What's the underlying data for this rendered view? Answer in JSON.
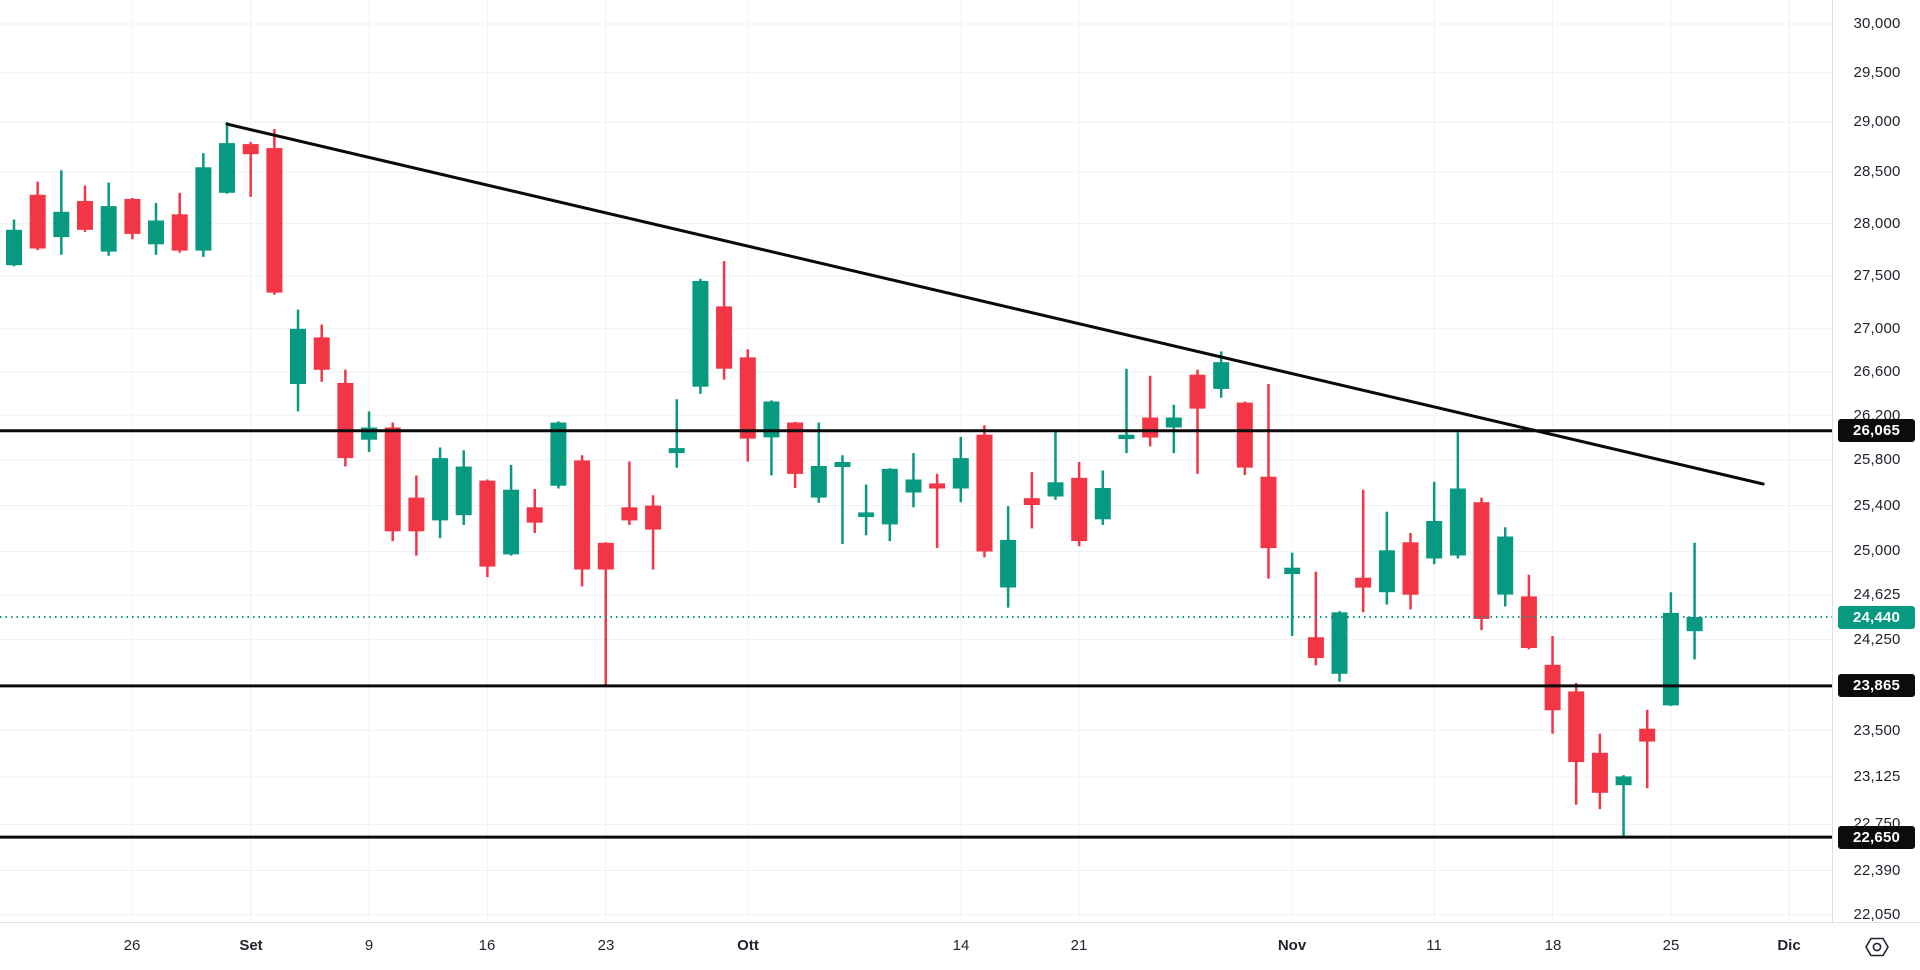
{
  "colors": {
    "background": "#ffffff",
    "grid": "#eff2f6",
    "axis_text": "#20242e",
    "axis_border": "#dcdfe4",
    "candle_up": "#089981",
    "candle_down": "#f23645",
    "level_line": "#0a0a0a",
    "level_badge_bg": "#0c0c0c",
    "level_badge_text": "#ffffff",
    "last_price_color": "#089981",
    "trendline": "#0a0a0a"
  },
  "icons": {
    "time_axis_settings": "gear-icon"
  },
  "chart_data": {
    "type": "candlestick",
    "price_scale": "log",
    "grid": true,
    "axis_position": {
      "price": "right",
      "time": "bottom"
    },
    "visible_price_range": {
      "top": 30250,
      "bottom": 21995
    },
    "y_ticks": [
      {
        "value": 30000,
        "label": "30,000"
      },
      {
        "value": 29500,
        "label": "29,500"
      },
      {
        "value": 29000,
        "label": "29,000"
      },
      {
        "value": 28500,
        "label": "28,500"
      },
      {
        "value": 28000,
        "label": "28,000"
      },
      {
        "value": 27500,
        "label": "27,500"
      },
      {
        "value": 27000,
        "label": "27,000"
      },
      {
        "value": 26600,
        "label": "26,600"
      },
      {
        "value": 26200,
        "label": "26,200"
      },
      {
        "value": 25800,
        "label": "25,800"
      },
      {
        "value": 25400,
        "label": "25,400"
      },
      {
        "value": 25000,
        "label": "25,000"
      },
      {
        "value": 24625,
        "label": "24,625"
      },
      {
        "value": 24250,
        "label": "24,250"
      },
      {
        "value": 23500,
        "label": "23,500"
      },
      {
        "value": 23125,
        "label": "23,125"
      },
      {
        "value": 22750,
        "label": "22,750"
      },
      {
        "value": 22390,
        "label": "22,390"
      },
      {
        "value": 22050,
        "label": "22,050"
      }
    ],
    "x_ticks": [
      {
        "label": "26",
        "bar": 5,
        "month": false
      },
      {
        "label": "Set",
        "bar": 10,
        "month": true
      },
      {
        "label": "9",
        "bar": 15,
        "month": false
      },
      {
        "label": "16",
        "bar": 20,
        "month": false
      },
      {
        "label": "23",
        "bar": 25,
        "month": false
      },
      {
        "label": "Ott",
        "bar": 31,
        "month": true
      },
      {
        "label": "14",
        "bar": 40,
        "month": false
      },
      {
        "label": "21",
        "bar": 45,
        "month": false
      },
      {
        "label": "Nov",
        "bar": 54,
        "month": true
      },
      {
        "label": "11",
        "bar": 60,
        "month": false
      },
      {
        "label": "18",
        "bar": 65,
        "month": false
      },
      {
        "label": "25",
        "bar": 70,
        "month": false
      },
      {
        "label": "Dic",
        "bar": 75,
        "month": true
      }
    ],
    "candles_ohlc": [
      [
        27600,
        28040,
        27590,
        27940
      ],
      [
        28280,
        28410,
        27745,
        27760
      ],
      [
        27870,
        28520,
        27700,
        28115
      ],
      [
        28220,
        28370,
        27920,
        27940
      ],
      [
        27730,
        28400,
        27690,
        28170
      ],
      [
        28240,
        28250,
        27850,
        27900
      ],
      [
        27800,
        28200,
        27700,
        28030
      ],
      [
        28090,
        28300,
        27720,
        27740
      ],
      [
        27740,
        28690,
        27680,
        28550
      ],
      [
        28300,
        29000,
        28290,
        28790
      ],
      [
        28780,
        28800,
        28260,
        28680
      ],
      [
        28740,
        28930,
        27320,
        27340
      ],
      [
        26490,
        27180,
        26240,
        27000
      ],
      [
        26920,
        27040,
        26510,
        26620
      ],
      [
        26500,
        26620,
        25745,
        25820
      ],
      [
        25985,
        26240,
        25875,
        26095
      ],
      [
        26095,
        26140,
        25090,
        25175
      ],
      [
        25470,
        25665,
        24965,
        25175
      ],
      [
        25270,
        25915,
        25115,
        25820
      ],
      [
        25315,
        25890,
        25230,
        25745
      ],
      [
        25620,
        25630,
        24780,
        24870
      ],
      [
        24975,
        25760,
        24965,
        25540
      ],
      [
        25385,
        25545,
        25160,
        25250
      ],
      [
        25575,
        26150,
        25550,
        26140
      ],
      [
        25800,
        25845,
        24700,
        24845
      ],
      [
        25075,
        25080,
        23865,
        24845
      ],
      [
        25385,
        25790,
        25230,
        25270
      ],
      [
        25400,
        25490,
        24845,
        25190
      ],
      [
        25865,
        26350,
        25735,
        25910
      ],
      [
        26465,
        27470,
        26400,
        27450
      ],
      [
        27210,
        27640,
        26530,
        26630
      ],
      [
        26735,
        26810,
        25790,
        25995
      ],
      [
        26005,
        26340,
        25665,
        26330
      ],
      [
        26140,
        26145,
        25555,
        25680
      ],
      [
        25470,
        26140,
        25425,
        25750
      ],
      [
        25740,
        25845,
        25065,
        25785
      ],
      [
        25300,
        25585,
        25140,
        25340
      ],
      [
        25235,
        25730,
        25090,
        25725
      ],
      [
        25515,
        25865,
        25385,
        25630
      ],
      [
        25595,
        25680,
        25030,
        25550
      ],
      [
        25550,
        26010,
        25430,
        25820
      ],
      [
        26030,
        26115,
        24950,
        25000
      ],
      [
        24690,
        25395,
        24520,
        25100
      ],
      [
        25465,
        25695,
        25200,
        25405
      ],
      [
        25480,
        26075,
        25450,
        25605
      ],
      [
        25645,
        25785,
        25045,
        25090
      ],
      [
        25280,
        25710,
        25230,
        25555
      ],
      [
        25990,
        26630,
        25865,
        26030
      ],
      [
        26185,
        26565,
        25925,
        26005
      ],
      [
        26095,
        26300,
        25865,
        26185
      ],
      [
        26575,
        26620,
        25680,
        26265
      ],
      [
        26445,
        26790,
        26365,
        26690
      ],
      [
        26320,
        26330,
        25670,
        25735
      ],
      [
        25655,
        26490,
        24765,
        25030
      ],
      [
        24805,
        24990,
        24280,
        24860
      ],
      [
        24270,
        24825,
        24035,
        24095
      ],
      [
        23965,
        24490,
        23900,
        24480
      ],
      [
        24775,
        25540,
        24480,
        24690
      ],
      [
        24650,
        25345,
        24545,
        25010
      ],
      [
        25080,
        25160,
        24505,
        24630
      ],
      [
        24940,
        25610,
        24890,
        25265
      ],
      [
        24965,
        26050,
        24940,
        25550
      ],
      [
        25430,
        25470,
        24330,
        24425
      ],
      [
        24630,
        25210,
        24530,
        25130
      ],
      [
        24615,
        24800,
        24170,
        24180
      ],
      [
        24040,
        24280,
        23475,
        23665
      ],
      [
        23820,
        23890,
        22905,
        23245
      ],
      [
        23320,
        23475,
        22870,
        23000
      ],
      [
        23060,
        23140,
        22650,
        23130
      ],
      [
        23515,
        23670,
        23035,
        23410
      ],
      [
        23705,
        24650,
        23700,
        24475
      ],
      [
        24320,
        25075,
        24085,
        24440
      ]
    ],
    "levels": [
      {
        "price": 26065,
        "label": "26,065"
      },
      {
        "price": 23865,
        "label": "23,865"
      },
      {
        "price": 22650,
        "label": "22,650"
      }
    ],
    "last_price": {
      "price": 24440,
      "label": "24,440"
    },
    "trendline": {
      "from_bar": 9,
      "from_price": 28980,
      "to_bar": 73.9,
      "to_price": 25590
    }
  }
}
